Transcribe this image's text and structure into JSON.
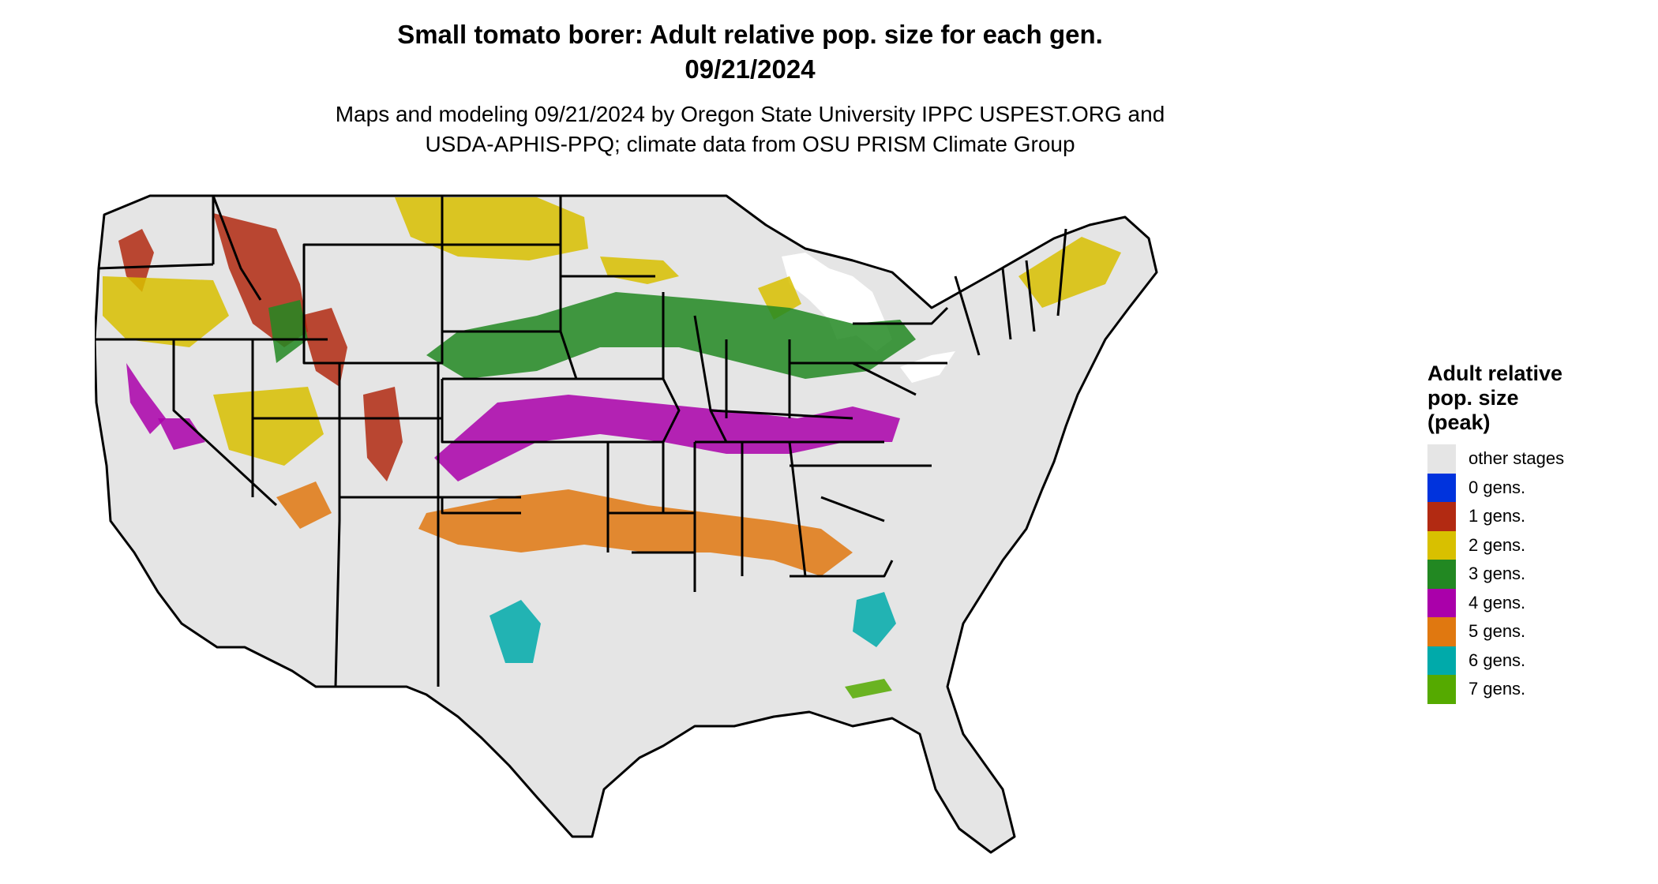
{
  "title": {
    "line1": "Small tomato borer: Adult relative pop. size for each gen.",
    "line2": "09/21/2024"
  },
  "subtitle": {
    "line1": "Maps and modeling 09/21/2024 by Oregon State University IPPC USPEST.ORG and",
    "line2": "USDA-APHIS-PPQ; climate data from OSU PRISM Climate Group"
  },
  "legend": {
    "title_lines": [
      "Adult relative",
      "pop. size",
      "(peak)"
    ],
    "items": [
      {
        "label": "other stages",
        "color": "#e5e5e5"
      },
      {
        "label": "0 gens.",
        "color": "#0033dd"
      },
      {
        "label": "1 gens.",
        "color": "#b22a12"
      },
      {
        "label": "2 gens.",
        "color": "#d8c000"
      },
      {
        "label": "3 gens.",
        "color": "#228822"
      },
      {
        "label": "4 gens.",
        "color": "#aa00aa"
      },
      {
        "label": "5 gens.",
        "color": "#e07810"
      },
      {
        "label": "6 gens.",
        "color": "#00aaaa"
      },
      {
        "label": "7 gens.",
        "color": "#55aa00"
      }
    ]
  },
  "map": {
    "region": "contiguous United States",
    "background_color": "#e5e5e5",
    "border_color": "#000000",
    "water_color": "#ffffff"
  }
}
